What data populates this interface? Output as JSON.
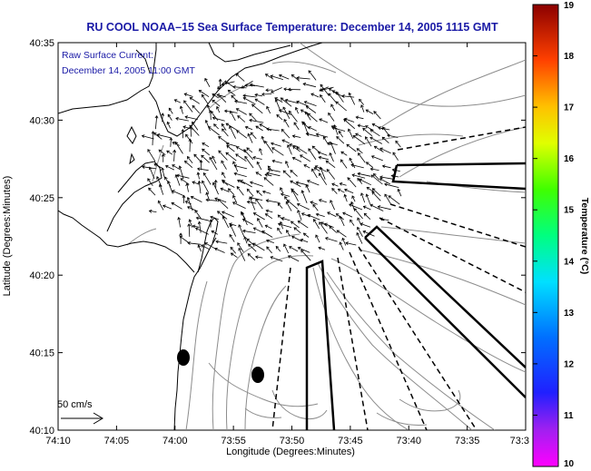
{
  "title": "RU COOL   NOAA–15  Sea Surface Temperature:  December 14, 2005 1115 GMT",
  "legend_line1": "Raw Surface Current:",
  "legend_line2": "December 14, 2005 11:00 GMT",
  "scale_label": "50 cm/s",
  "x_axis": {
    "label": "Longitude (Degrees:Minutes)",
    "ticks": [
      "74:10",
      "74:05",
      "74:00",
      "73:55",
      "73:50",
      "73:45",
      "73:40",
      "73:35",
      "73:3"
    ]
  },
  "y_axis": {
    "label": "Latitude (Degrees:Minutes)",
    "ticks": [
      "40:35",
      "40:30",
      "40:25",
      "40:20",
      "40:15",
      "40:10"
    ]
  },
  "colorbar": {
    "label": "Temperature (°C)",
    "min": 10,
    "max": 19,
    "ticks": [
      "19",
      "18",
      "17",
      "16",
      "15",
      "14",
      "13",
      "12",
      "11",
      "10"
    ]
  },
  "colors": {
    "title": "#1a1aa6",
    "land_contour": "#000000",
    "bathymetry": "#8c8c8c"
  }
}
